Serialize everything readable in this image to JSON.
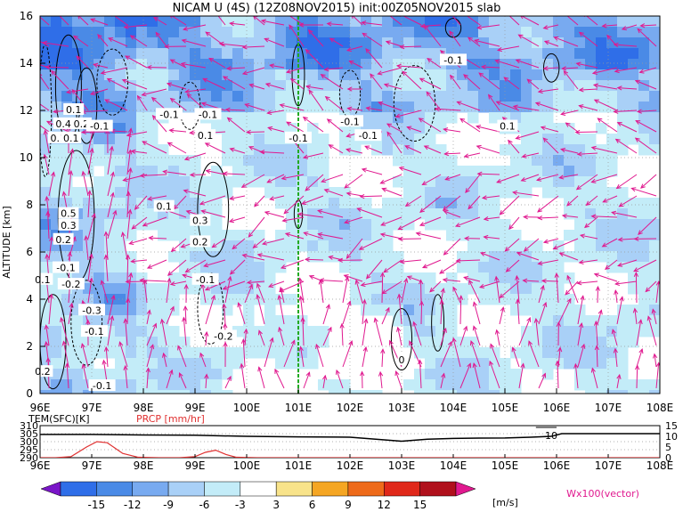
{
  "chart_data": [
    {
      "type": "heatmap",
      "title": "NICAM U (4S) (12Z08NOV2015) init:00Z05NOV2015 slab",
      "xlabel": "",
      "ylabel": "ALTITUDE [km]",
      "x_tick_labels": [
        "96E",
        "97E",
        "98E",
        "99E",
        "100E",
        "101E",
        "102E",
        "103E",
        "104E",
        "105E",
        "106E",
        "107E",
        "108E"
      ],
      "y_tick_labels": [
        "0",
        "2",
        "4",
        "6",
        "8",
        "10",
        "12",
        "14",
        "16"
      ],
      "xlim": [
        96,
        108
      ],
      "ylim": [
        0,
        16
      ],
      "grid": true,
      "marker_line_x": 101,
      "marker_line_color": "#22aa22",
      "contour_labels": [
        {
          "text": "-0.1",
          "x": 104.0,
          "y": 14.1
        },
        {
          "text": "-0.1",
          "x": 98.5,
          "y": 11.8
        },
        {
          "text": "-0.1",
          "x": 99.25,
          "y": 11.8
        },
        {
          "text": "-0.1",
          "x": 101.0,
          "y": 10.8
        },
        {
          "text": "-0.1",
          "x": 102.0,
          "y": 11.5
        },
        {
          "text": "-0.1",
          "x": 102.35,
          "y": 10.9
        },
        {
          "text": "0.1",
          "x": 105.05,
          "y": 11.3
        },
        {
          "text": "0.1",
          "x": 99.2,
          "y": 10.9
        },
        {
          "text": "0.1",
          "x": 96.65,
          "y": 12.0
        },
        {
          "text": "0.4",
          "x": 96.45,
          "y": 11.4
        },
        {
          "text": "0.2",
          "x": 96.8,
          "y": 11.4
        },
        {
          "text": "-0.1",
          "x": 97.15,
          "y": 11.3
        },
        {
          "text": "0.1",
          "x": 96.35,
          "y": 10.8
        },
        {
          "text": "0.1",
          "x": 96.6,
          "y": 10.8
        },
        {
          "text": "0.1",
          "x": 98.4,
          "y": 7.9
        },
        {
          "text": "0.3",
          "x": 99.1,
          "y": 7.3
        },
        {
          "text": "0.2",
          "x": 99.1,
          "y": 6.4
        },
        {
          "text": "0.5",
          "x": 96.55,
          "y": 7.6
        },
        {
          "text": "0.3",
          "x": 96.55,
          "y": 7.1
        },
        {
          "text": "0.2",
          "x": 96.45,
          "y": 6.5
        },
        {
          "text": "-0.1",
          "x": 99.2,
          "y": 4.8
        },
        {
          "text": "-0.1",
          "x": 96.5,
          "y": 5.3
        },
        {
          "text": "-0.2",
          "x": 96.6,
          "y": 4.6
        },
        {
          "text": "0.1",
          "x": 96.05,
          "y": 4.8
        },
        {
          "text": "-0.3",
          "x": 97.0,
          "y": 3.5
        },
        {
          "text": "-0.1",
          "x": 97.05,
          "y": 2.6
        },
        {
          "text": "-0.2",
          "x": 99.55,
          "y": 2.4
        },
        {
          "text": "0",
          "x": 103.0,
          "y": 1.4
        },
        {
          "text": "0.2",
          "x": 96.05,
          "y": 0.9
        },
        {
          "text": "-0.1",
          "x": 97.2,
          "y": 0.3
        }
      ]
    },
    {
      "type": "line",
      "x": [
        96,
        96.3,
        96.6,
        96.9,
        97.1,
        97.3,
        97.6,
        97.9,
        98.3,
        98.7,
        99.0,
        99.2,
        99.4,
        99.6,
        99.8,
        100.2
      ],
      "series": [
        {
          "name": "PRCP [mm/hr]",
          "color": "#e03030",
          "values": [
            0,
            0,
            0.5,
            5,
            7.5,
            7,
            2,
            0.2,
            0,
            0,
            0.5,
            2.5,
            3.5,
            1.5,
            0.2,
            0
          ]
        }
      ],
      "left_label": "TEM(SFC)[K]",
      "right_label": "PRCP [mm/hr]",
      "left_ticks": [
        "310",
        "305",
        "300",
        "295",
        "290"
      ],
      "right_ticks": [
        "15",
        "10",
        "5",
        "0"
      ],
      "x_tick_labels": [
        "96E",
        "97E",
        "98E",
        "99E",
        "100E",
        "101E",
        "102E",
        "103E",
        "104E",
        "105E",
        "106E",
        "107E",
        "108E"
      ],
      "temperature_x": [
        96,
        97,
        98,
        99,
        100,
        101,
        102,
        102.5,
        103,
        103.5,
        104,
        104.5,
        105,
        105.5,
        105.9,
        106.1,
        108
      ],
      "temperature_values": [
        304.5,
        304.5,
        304.2,
        304.0,
        303.3,
        303.0,
        302.8,
        301.5,
        300.3,
        301.5,
        302.0,
        302.2,
        302.3,
        302.8,
        303.3,
        305.0,
        305.0
      ],
      "annotation": {
        "text": "10",
        "x": 105.7,
        "y": 305
      }
    }
  ],
  "colorbar": {
    "tick_labels": [
      "-15",
      "-12",
      "-9",
      "-6",
      "-3",
      "3",
      "6",
      "9",
      "12",
      "15"
    ],
    "unit": "[m/s]",
    "colors": [
      "#7a16c8",
      "#2f6ee8",
      "#4a8ae6",
      "#78aaf0",
      "#a9d0f7",
      "#c3ecf8",
      "#ffffff",
      "#f8e38a",
      "#f5a623",
      "#ee6a1a",
      "#e0281a",
      "#b0101c",
      "#e0198f"
    ]
  },
  "vector_note": "Wx100(vector)",
  "colors": {
    "arrow": "#e0198f",
    "prcp": "#e03030",
    "marker": "#22aa22"
  }
}
